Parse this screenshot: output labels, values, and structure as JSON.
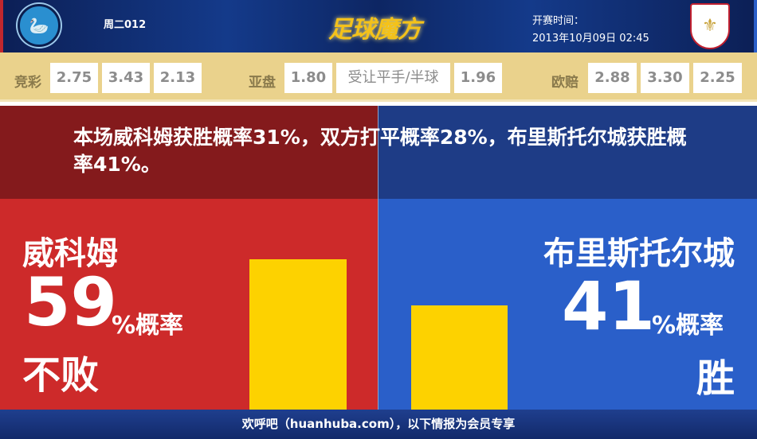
{
  "header": {
    "match_code": "周二012",
    "brand": "足球魔方",
    "kickoff_label": "开赛时间：",
    "kickoff_time": "2013年10月09日 02:45",
    "home_logo_text": "WYCOMBE WANDERERS"
  },
  "odds": {
    "jingcai": {
      "label": "竞彩",
      "values": [
        "2.75",
        "3.43",
        "2.13"
      ]
    },
    "asian": {
      "label": "亚盘",
      "home": "1.80",
      "handicap": "受让平手/半球",
      "away": "1.96"
    },
    "european": {
      "label": "欧赔",
      "values": [
        "2.88",
        "3.30",
        "2.25"
      ]
    }
  },
  "summary": "本场威科姆获胜概率31%，双方打平概率28%，布里斯托尔城获胜概率41%。",
  "home": {
    "name": "威科姆",
    "percent": "59",
    "percent_suffix": "%概率",
    "outcome": "不败",
    "bar_value": 59
  },
  "away": {
    "name": "布里斯托尔城",
    "percent": "41",
    "percent_suffix": "%概率",
    "outcome": "胜",
    "bar_value": 41
  },
  "colors": {
    "home": "#cd2a2a",
    "away": "#2a5fc9",
    "bar": "#fdd200"
  },
  "footer": "欢呼吧（huanhuba.com），以下情报为会员专享"
}
